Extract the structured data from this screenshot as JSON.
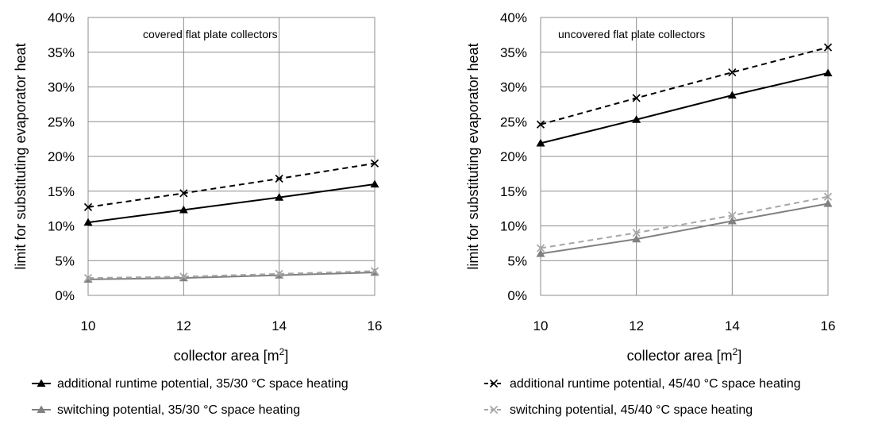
{
  "chart_data": [
    {
      "type": "line",
      "annotation": "covered flat plate collectors",
      "xlabel": "collector area [m",
      "xlabel_sup": "2",
      "xlabel_end": "]",
      "ylabel": "limit for substituting evaporator heat",
      "x": [
        10,
        12,
        14,
        16
      ],
      "xlim": [
        10,
        16
      ],
      "ylim": [
        0,
        40
      ],
      "ytick_labels": [
        "0%",
        "5%",
        "10%",
        "15%",
        "20%",
        "25%",
        "30%",
        "35%",
        "40%"
      ],
      "xtick_labels": [
        "10",
        "12",
        "14",
        "16"
      ],
      "grid": true,
      "series": [
        {
          "key": "add3530",
          "values": [
            10.5,
            12.3,
            14.1,
            16.0
          ],
          "color": "#000000",
          "dash": false,
          "marker": "triangle"
        },
        {
          "key": "add4540",
          "values": [
            12.7,
            14.7,
            16.8,
            19.0
          ],
          "color": "#000000",
          "dash": true,
          "marker": "x"
        },
        {
          "key": "sw3530",
          "values": [
            2.3,
            2.5,
            2.9,
            3.3
          ],
          "color": "#808080",
          "dash": false,
          "marker": "triangle"
        },
        {
          "key": "sw4540",
          "values": [
            2.5,
            2.7,
            3.1,
            3.5
          ],
          "color": "#a6a6a6",
          "dash": true,
          "marker": "x"
        }
      ]
    },
    {
      "type": "line",
      "annotation": "uncovered flat plate collectors",
      "xlabel": "collector area [m",
      "xlabel_sup": "2",
      "xlabel_end": "]",
      "ylabel": "limit for substituting evaporator heat",
      "x": [
        10,
        12,
        14,
        16
      ],
      "xlim": [
        10,
        16
      ],
      "ylim": [
        0,
        40
      ],
      "ytick_labels": [
        "0%",
        "5%",
        "10%",
        "15%",
        "20%",
        "25%",
        "30%",
        "35%",
        "40%"
      ],
      "xtick_labels": [
        "10",
        "12",
        "14",
        "16"
      ],
      "grid": true,
      "series": [
        {
          "key": "add3530",
          "values": [
            21.9,
            25.3,
            28.8,
            32.0
          ],
          "color": "#000000",
          "dash": false,
          "marker": "triangle"
        },
        {
          "key": "add4540",
          "values": [
            24.6,
            28.4,
            32.1,
            35.7
          ],
          "color": "#000000",
          "dash": true,
          "marker": "x"
        },
        {
          "key": "sw3530",
          "values": [
            6.0,
            8.1,
            10.7,
            13.2
          ],
          "color": "#808080",
          "dash": false,
          "marker": "triangle"
        },
        {
          "key": "sw4540",
          "values": [
            6.8,
            9.0,
            11.5,
            14.2
          ],
          "color": "#a6a6a6",
          "dash": true,
          "marker": "x"
        }
      ]
    }
  ],
  "legend": [
    {
      "key": "add3530",
      "label": "additional runtime potential, 35/30 °C space heating",
      "color": "#000000",
      "dash": false,
      "marker": "triangle"
    },
    {
      "key": "add4540",
      "label": "additional runtime potential, 45/40 °C space heating",
      "color": "#000000",
      "dash": true,
      "marker": "x"
    },
    {
      "key": "sw3530",
      "label": "switching potential, 35/30 °C space heating",
      "color": "#808080",
      "dash": false,
      "marker": "triangle"
    },
    {
      "key": "sw4540",
      "label": "switching potential, 45/40 °C space heating",
      "color": "#a6a6a6",
      "dash": true,
      "marker": "x"
    }
  ]
}
